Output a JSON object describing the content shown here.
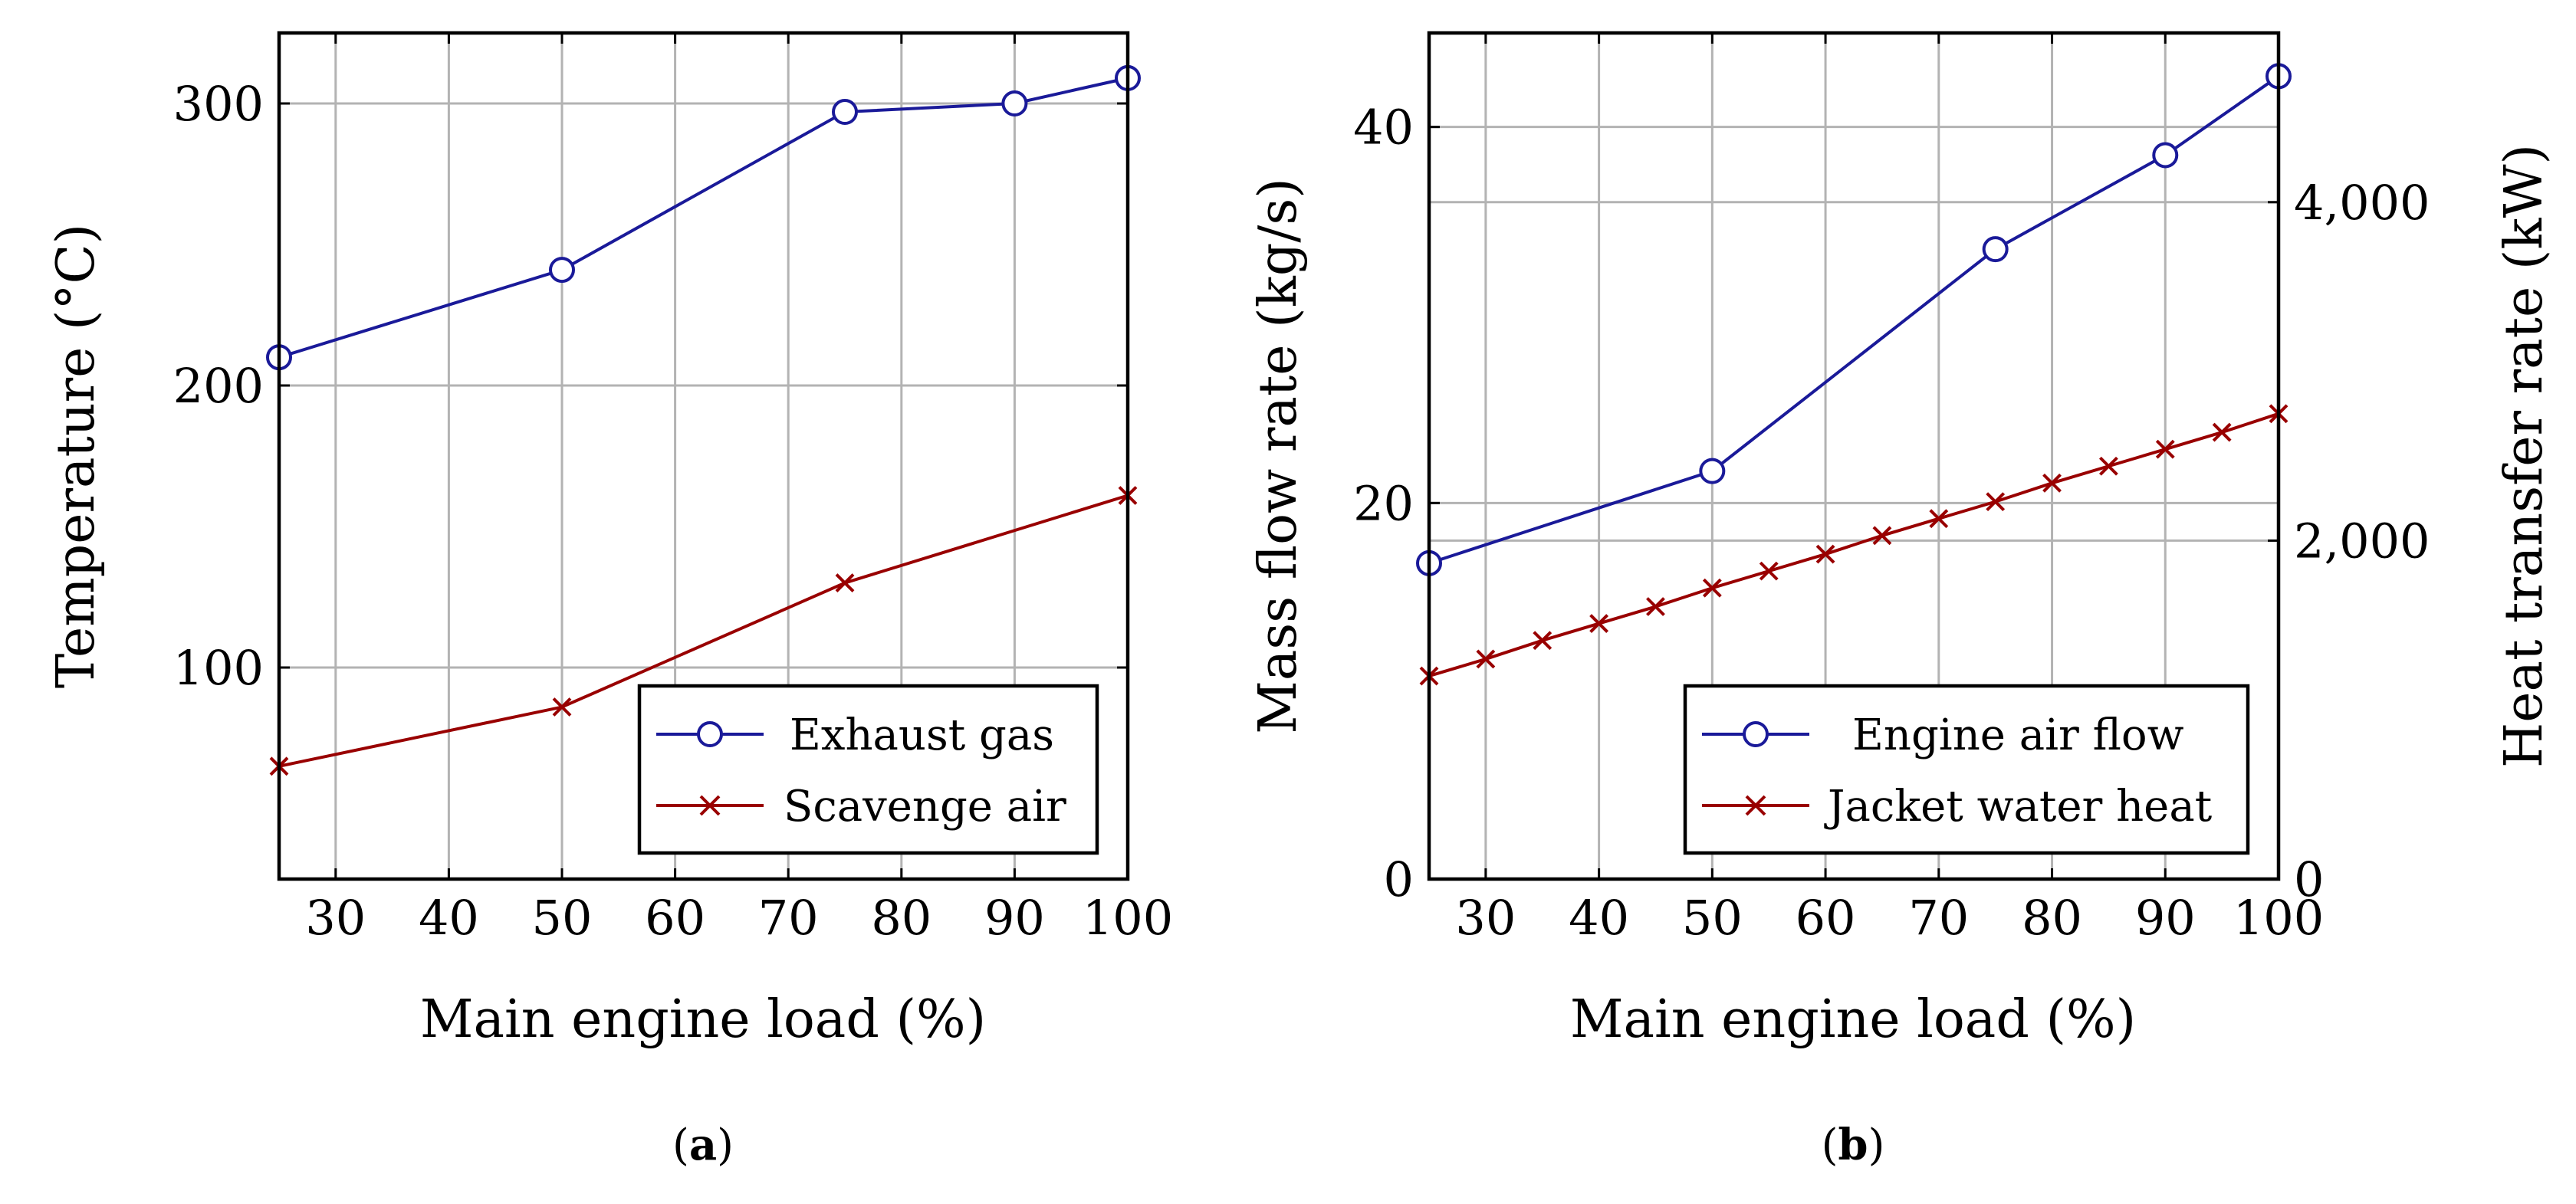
{
  "chart_data": [
    {
      "type": "line",
      "panel": "a",
      "caption": "a",
      "xlabel": "Main engine load (%)",
      "ylabel": "Temperature (°C)",
      "xlim": [
        25,
        100
      ],
      "ylim": [
        25,
        325
      ],
      "xticks": [
        30,
        40,
        50,
        60,
        70,
        80,
        90,
        100
      ],
      "yticks": [
        100,
        200,
        300
      ],
      "grid": true,
      "legend_position": "bottom-right",
      "series": [
        {
          "name": "Exhaust gas",
          "marker": "circle",
          "color": "#1a1a99",
          "x": [
            25,
            50,
            75,
            90,
            100
          ],
          "y": [
            210,
            241,
            297,
            300,
            309
          ]
        },
        {
          "name": "Scavenge air",
          "marker": "x",
          "color": "#990000",
          "x": [
            25,
            50,
            75,
            100
          ],
          "y": [
            65,
            86,
            130,
            161
          ]
        }
      ]
    },
    {
      "type": "line",
      "panel": "b",
      "caption": "b",
      "xlabel": "Main engine load (%)",
      "ylabel": "Mass flow rate (kg/s)",
      "ylabel_right": "Heat transfer rate (kW)",
      "xlim": [
        25,
        100
      ],
      "ylim": [
        0,
        45
      ],
      "ylim_right": [
        0,
        5000
      ],
      "xticks": [
        30,
        40,
        50,
        60,
        70,
        80,
        90,
        100
      ],
      "yticks": [
        0,
        20,
        40
      ],
      "yticks_right": [
        0,
        2000,
        4000
      ],
      "ytick_labels_right": [
        "0",
        "2,000",
        "4,000"
      ],
      "grid": true,
      "legend_position": "bottom-right",
      "series": [
        {
          "name": "Engine air flow",
          "axis": "left",
          "marker": "circle",
          "color": "#1a1a99",
          "x": [
            25,
            50,
            75,
            90,
            100
          ],
          "y": [
            16.8,
            21.7,
            33.5,
            38.5,
            42.7
          ]
        },
        {
          "name": "Jacket water heat",
          "axis": "right",
          "marker": "x",
          "color": "#990000",
          "x": [
            25,
            30,
            35,
            40,
            45,
            50,
            55,
            60,
            65,
            70,
            75,
            80,
            85,
            90,
            95,
            100
          ],
          "y": [
            1200,
            1300,
            1410,
            1510,
            1610,
            1720,
            1820,
            1920,
            2030,
            2130,
            2230,
            2340,
            2440,
            2540,
            2640,
            2750
          ]
        }
      ]
    }
  ]
}
